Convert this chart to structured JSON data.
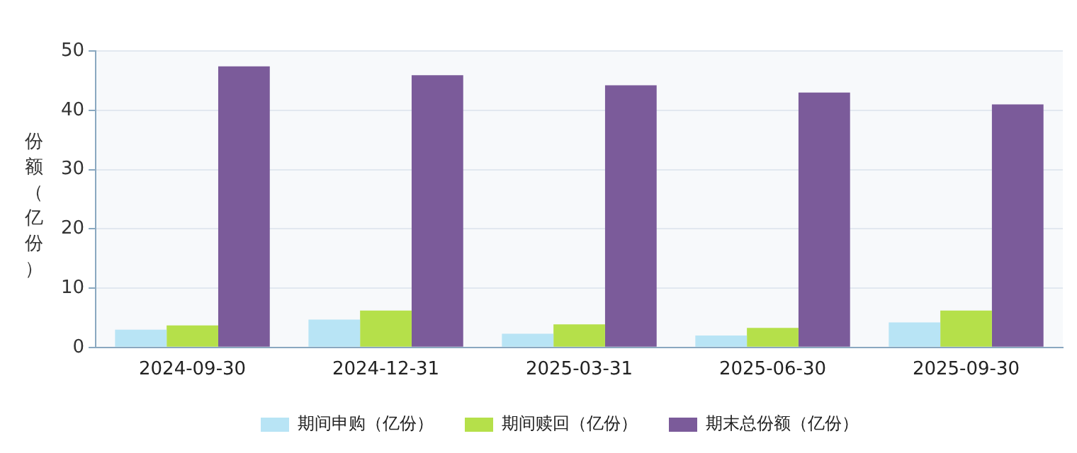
{
  "chart_data": {
    "type": "bar",
    "ylabel": "份额（亿份）",
    "categories": [
      "2024-09-30",
      "2024-12-31",
      "2025-03-31",
      "2025-06-30",
      "2025-09-30"
    ],
    "series": [
      {
        "name": "期间申购（亿份）",
        "color": "#b8e4f5",
        "values": [
          3.0,
          4.7,
          2.3,
          2.0,
          4.2
        ]
      },
      {
        "name": "期间赎回（亿份）",
        "color": "#b5e04a",
        "values": [
          3.7,
          6.2,
          3.9,
          3.3,
          6.2
        ]
      },
      {
        "name": "期末总份额（亿份）",
        "color": "#7b5b9a",
        "values": [
          47.4,
          45.9,
          44.2,
          43.0,
          41.0
        ]
      }
    ],
    "ylim": [
      0,
      50
    ],
    "yticks": [
      0,
      10,
      20,
      30,
      40,
      50
    ],
    "grid": "y",
    "legend": "bottom"
  }
}
